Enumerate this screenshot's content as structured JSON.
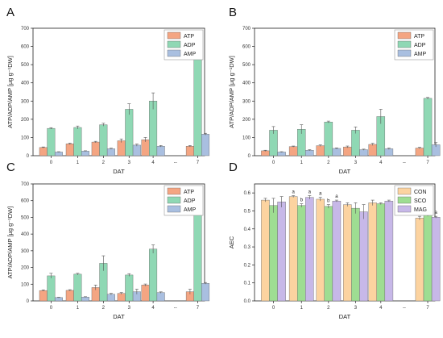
{
  "figure": {
    "break_symbol": "--"
  },
  "colors": {
    "ATP": "#f4a582",
    "ADP": "#8fd8b4",
    "AMP": "#a9bfe0",
    "CON": "#fcd3a0",
    "SCO": "#9edd92",
    "MAG": "#c7b8e8",
    "error_bar": "#555555"
  },
  "chart_data": [
    {
      "panel": "A",
      "type": "bar",
      "categories": [
        "0",
        "1",
        "2",
        "3",
        "4",
        "7"
      ],
      "xlabel": "DAT",
      "ylabel": "ATP/ADP/AMP [µg g⁻¹DW]",
      "ylim": [
        0,
        700
      ],
      "yticks": [
        0,
        100,
        200,
        300,
        400,
        500,
        600,
        700
      ],
      "legend_position": "top-right",
      "series": [
        {
          "name": "ATP",
          "values": [
            45,
            65,
            75,
            82,
            88,
            52
          ],
          "errors": [
            3,
            4,
            4,
            10,
            12,
            4
          ]
        },
        {
          "name": "ADP",
          "values": [
            150,
            155,
            170,
            255,
            300,
            595
          ],
          "errors": [
            4,
            8,
            8,
            30,
            45,
            12
          ]
        },
        {
          "name": "AMP",
          "values": [
            20,
            25,
            38,
            58,
            52,
            118
          ],
          "errors": [
            2,
            2,
            3,
            6,
            4,
            5
          ]
        }
      ],
      "significance": []
    },
    {
      "panel": "B",
      "type": "bar",
      "categories": [
        "0",
        "1",
        "2",
        "3",
        "4",
        "7"
      ],
      "xlabel": "DAT",
      "ylabel": "ATP/ADP/AMP [µg g⁻¹DW]",
      "ylim": [
        0,
        700
      ],
      "yticks": [
        0,
        100,
        200,
        300,
        400,
        500,
        600,
        700
      ],
      "legend_position": "top-right",
      "series": [
        {
          "name": "ATP",
          "values": [
            27,
            50,
            55,
            48,
            62,
            42
          ],
          "errors": [
            3,
            3,
            4,
            5,
            6,
            4
          ]
        },
        {
          "name": "ADP",
          "values": [
            140,
            145,
            185,
            140,
            215,
            315
          ],
          "errors": [
            20,
            25,
            5,
            18,
            40,
            5
          ]
        },
        {
          "name": "AMP",
          "values": [
            20,
            30,
            40,
            33,
            38,
            60
          ],
          "errors": [
            2,
            3,
            3,
            3,
            4,
            12
          ]
        }
      ],
      "significance": []
    },
    {
      "panel": "C",
      "type": "bar",
      "categories": [
        "0",
        "1",
        "2",
        "3",
        "4",
        "7"
      ],
      "xlabel": "DAT",
      "ylabel": "ATP/ADP/AMP [µg g⁻¹DW]",
      "ylim": [
        0,
        700
      ],
      "yticks": [
        0,
        100,
        200,
        300,
        400,
        500,
        600,
        700
      ],
      "legend_position": "top-right",
      "series": [
        {
          "name": "ATP",
          "values": [
            62,
            63,
            80,
            45,
            95,
            55
          ],
          "errors": [
            4,
            4,
            15,
            5,
            6,
            15
          ]
        },
        {
          "name": "ADP",
          "values": [
            150,
            160,
            225,
            155,
            310,
            590
          ],
          "errors": [
            15,
            5,
            45,
            8,
            25,
            15
          ]
        },
        {
          "name": "AMP",
          "values": [
            20,
            23,
            40,
            55,
            50,
            105
          ],
          "errors": [
            2,
            2,
            5,
            15,
            4,
            5
          ]
        }
      ],
      "significance": []
    },
    {
      "panel": "D",
      "type": "bar",
      "categories": [
        "0",
        "1",
        "2",
        "3",
        "4",
        "7"
      ],
      "xlabel": "DAT",
      "ylabel": "AEC",
      "ylim": [
        0.0,
        0.65
      ],
      "yticks": [
        0.0,
        0.1,
        0.2,
        0.3,
        0.4,
        0.5,
        0.6
      ],
      "legend_position": "top-right",
      "series": [
        {
          "name": "CON",
          "values": [
            0.56,
            0.58,
            0.565,
            0.535,
            0.545,
            0.46
          ],
          "errors": [
            0.01,
            0.005,
            0.01,
            0.01,
            0.015,
            0.01
          ]
        },
        {
          "name": "SCO",
          "values": [
            0.53,
            0.53,
            0.525,
            0.515,
            0.54,
            0.48
          ],
          "errors": [
            0.04,
            0.01,
            0.01,
            0.03,
            0.005,
            0.01
          ]
        },
        {
          "name": "MAG",
          "values": [
            0.55,
            0.575,
            0.555,
            0.495,
            0.555,
            0.465
          ],
          "errors": [
            0.03,
            0.01,
            0.005,
            0.04,
            0.005,
            0.005
          ]
        }
      ],
      "significance": [
        {
          "category": "1",
          "labels": [
            "a",
            "b",
            "a"
          ]
        },
        {
          "category": "2",
          "labels": [
            "a",
            "b",
            "a"
          ]
        },
        {
          "category": "7",
          "labels": [
            "a",
            "b",
            "a"
          ]
        }
      ]
    }
  ]
}
